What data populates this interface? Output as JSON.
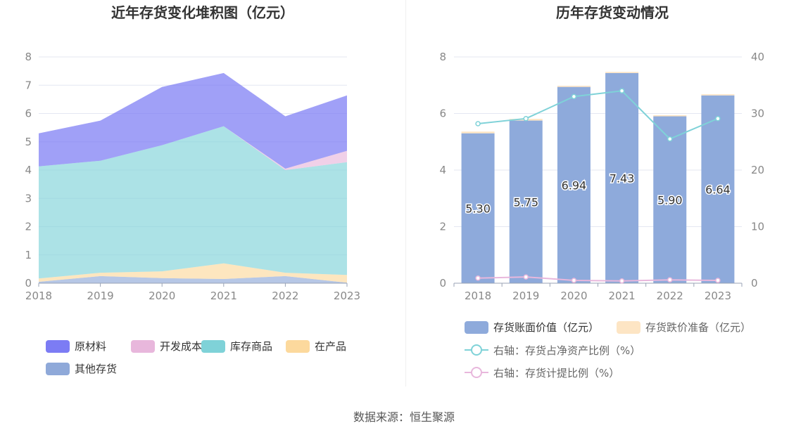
{
  "chart_data": [
    {
      "type": "area",
      "stacked": true,
      "title": "近年存货变化堆积图（亿元）",
      "categories": [
        "2018",
        "2019",
        "2020",
        "2021",
        "2022",
        "2023"
      ],
      "ylim": [
        0,
        8
      ],
      "yticks": [
        0,
        1,
        2,
        3,
        4,
        5,
        6,
        7,
        8
      ],
      "grid": true,
      "legend_position": "bottom",
      "series": [
        {
          "name": "其他存货",
          "color": "#8fa9d9",
          "values": [
            0.05,
            0.25,
            0.18,
            0.15,
            0.25,
            0.02
          ]
        },
        {
          "name": "在产品",
          "color": "#fcd99d",
          "values": [
            0.12,
            0.12,
            0.24,
            0.55,
            0.12,
            0.27
          ]
        },
        {
          "name": "库存商品",
          "color": "#7fd2d8",
          "values": [
            3.96,
            3.96,
            4.46,
            4.85,
            3.63,
            3.99
          ]
        },
        {
          "name": "开发成本",
          "color": "#e8b7dc",
          "values": [
            0,
            0,
            0,
            0,
            0.05,
            0.4
          ]
        },
        {
          "name": "原材料",
          "color": "#7c7cf4",
          "values": [
            1.17,
            1.42,
            2.06,
            1.88,
            1.85,
            1.96
          ]
        }
      ],
      "legend_order": [
        "原材料",
        "开发成本",
        "库存商品",
        "在产品",
        "其他存货"
      ]
    },
    {
      "type": "bar",
      "stacked": true,
      "title": "历年存货变动情况",
      "categories": [
        "2018",
        "2019",
        "2020",
        "2021",
        "2022",
        "2023"
      ],
      "ylim": [
        0,
        8
      ],
      "yticks": [
        0,
        2,
        4,
        6,
        8
      ],
      "y2lim": [
        0,
        40
      ],
      "y2ticks": [
        0,
        10,
        20,
        30,
        40
      ],
      "grid": true,
      "legend_position": "bottom",
      "series": [
        {
          "name": "存货账面价值（亿元）",
          "color": "#8eaadb",
          "values": [
            5.3,
            5.75,
            6.94,
            7.43,
            5.9,
            6.64
          ],
          "labels": [
            "5.30",
            "5.75",
            "6.94",
            "7.43",
            "5.90",
            "6.64"
          ]
        },
        {
          "name": "存货跌价准备（亿元）",
          "color": "#fde5c4",
          "values": [
            0.06,
            0.06,
            0.04,
            0.04,
            0.04,
            0.04
          ]
        }
      ],
      "line_series": [
        {
          "name": "右轴：存货占净资产比例（%）",
          "color": "#7fd2d8",
          "axis": "right",
          "values": [
            28.2,
            29.1,
            33.0,
            34.0,
            25.5,
            29.1
          ]
        },
        {
          "name": "右轴：存货计提比例（%）",
          "color": "#e8b7dc",
          "axis": "right",
          "values": [
            0.9,
            1.1,
            0.5,
            0.4,
            0.6,
            0.5
          ]
        }
      ]
    }
  ],
  "footer": {
    "source": "数据来源：恒生聚源"
  }
}
